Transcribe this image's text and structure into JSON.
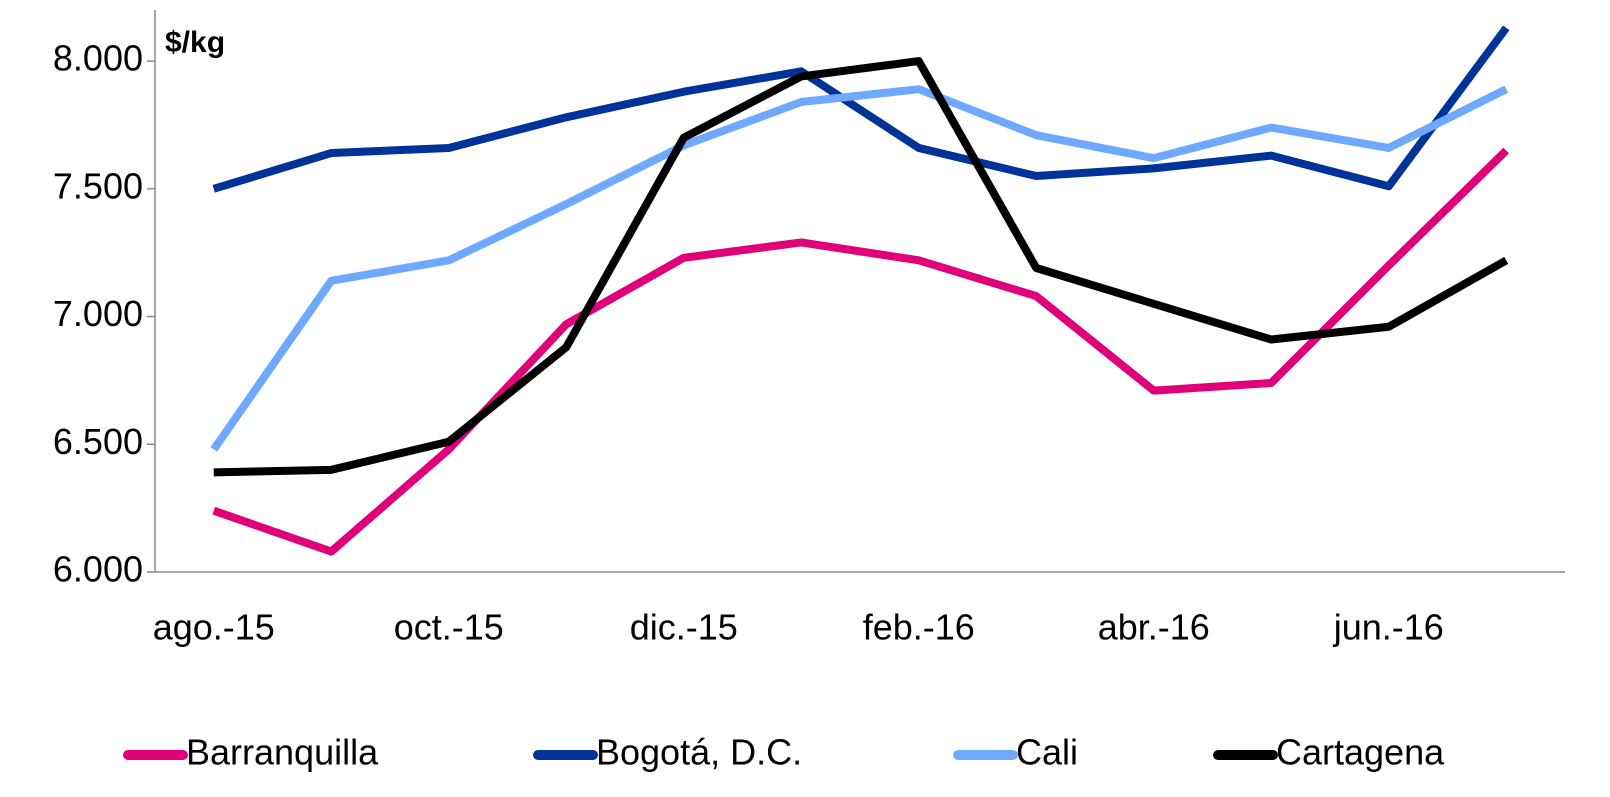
{
  "chart_data": {
    "type": "line",
    "annotation": "$/kg",
    "categories": [
      "ago.-15",
      null,
      "oct.-15",
      null,
      "dic.-15",
      null,
      "feb.-16",
      null,
      "abr.-16",
      null,
      "jun.-16",
      null
    ],
    "series": [
      {
        "name": "Barranquilla",
        "color": "#e0007a",
        "values": [
          6240,
          6080,
          6480,
          6970,
          7230,
          7290,
          7220,
          7080,
          6710,
          6740,
          7200,
          7650
        ]
      },
      {
        "name": "Bogotá, D.C.",
        "color": "#003399",
        "values": [
          7500,
          7640,
          7660,
          7780,
          7880,
          7960,
          7660,
          7550,
          7580,
          7630,
          7510,
          8130
        ]
      },
      {
        "name": "Cali",
        "color": "#6fa8ff",
        "values": [
          6480,
          7140,
          7220,
          7440,
          7670,
          7840,
          7890,
          7710,
          7620,
          7740,
          7660,
          7890
        ]
      },
      {
        "name": "Cartagena",
        "color": "#000000",
        "values": [
          6390,
          6400,
          6510,
          6880,
          7700,
          7940,
          8000,
          7190,
          7050,
          6910,
          6960,
          7220
        ]
      }
    ],
    "ylim": [
      6000,
      8200
    ],
    "yticks": [
      {
        "value": 6000,
        "label": "6.000"
      },
      {
        "value": 6500,
        "label": "6.500"
      },
      {
        "value": 7000,
        "label": "7.000"
      },
      {
        "value": 7500,
        "label": "7.500"
      },
      {
        "value": 8000,
        "label": "8.000"
      }
    ],
    "grid": false,
    "legend": "bottom"
  }
}
